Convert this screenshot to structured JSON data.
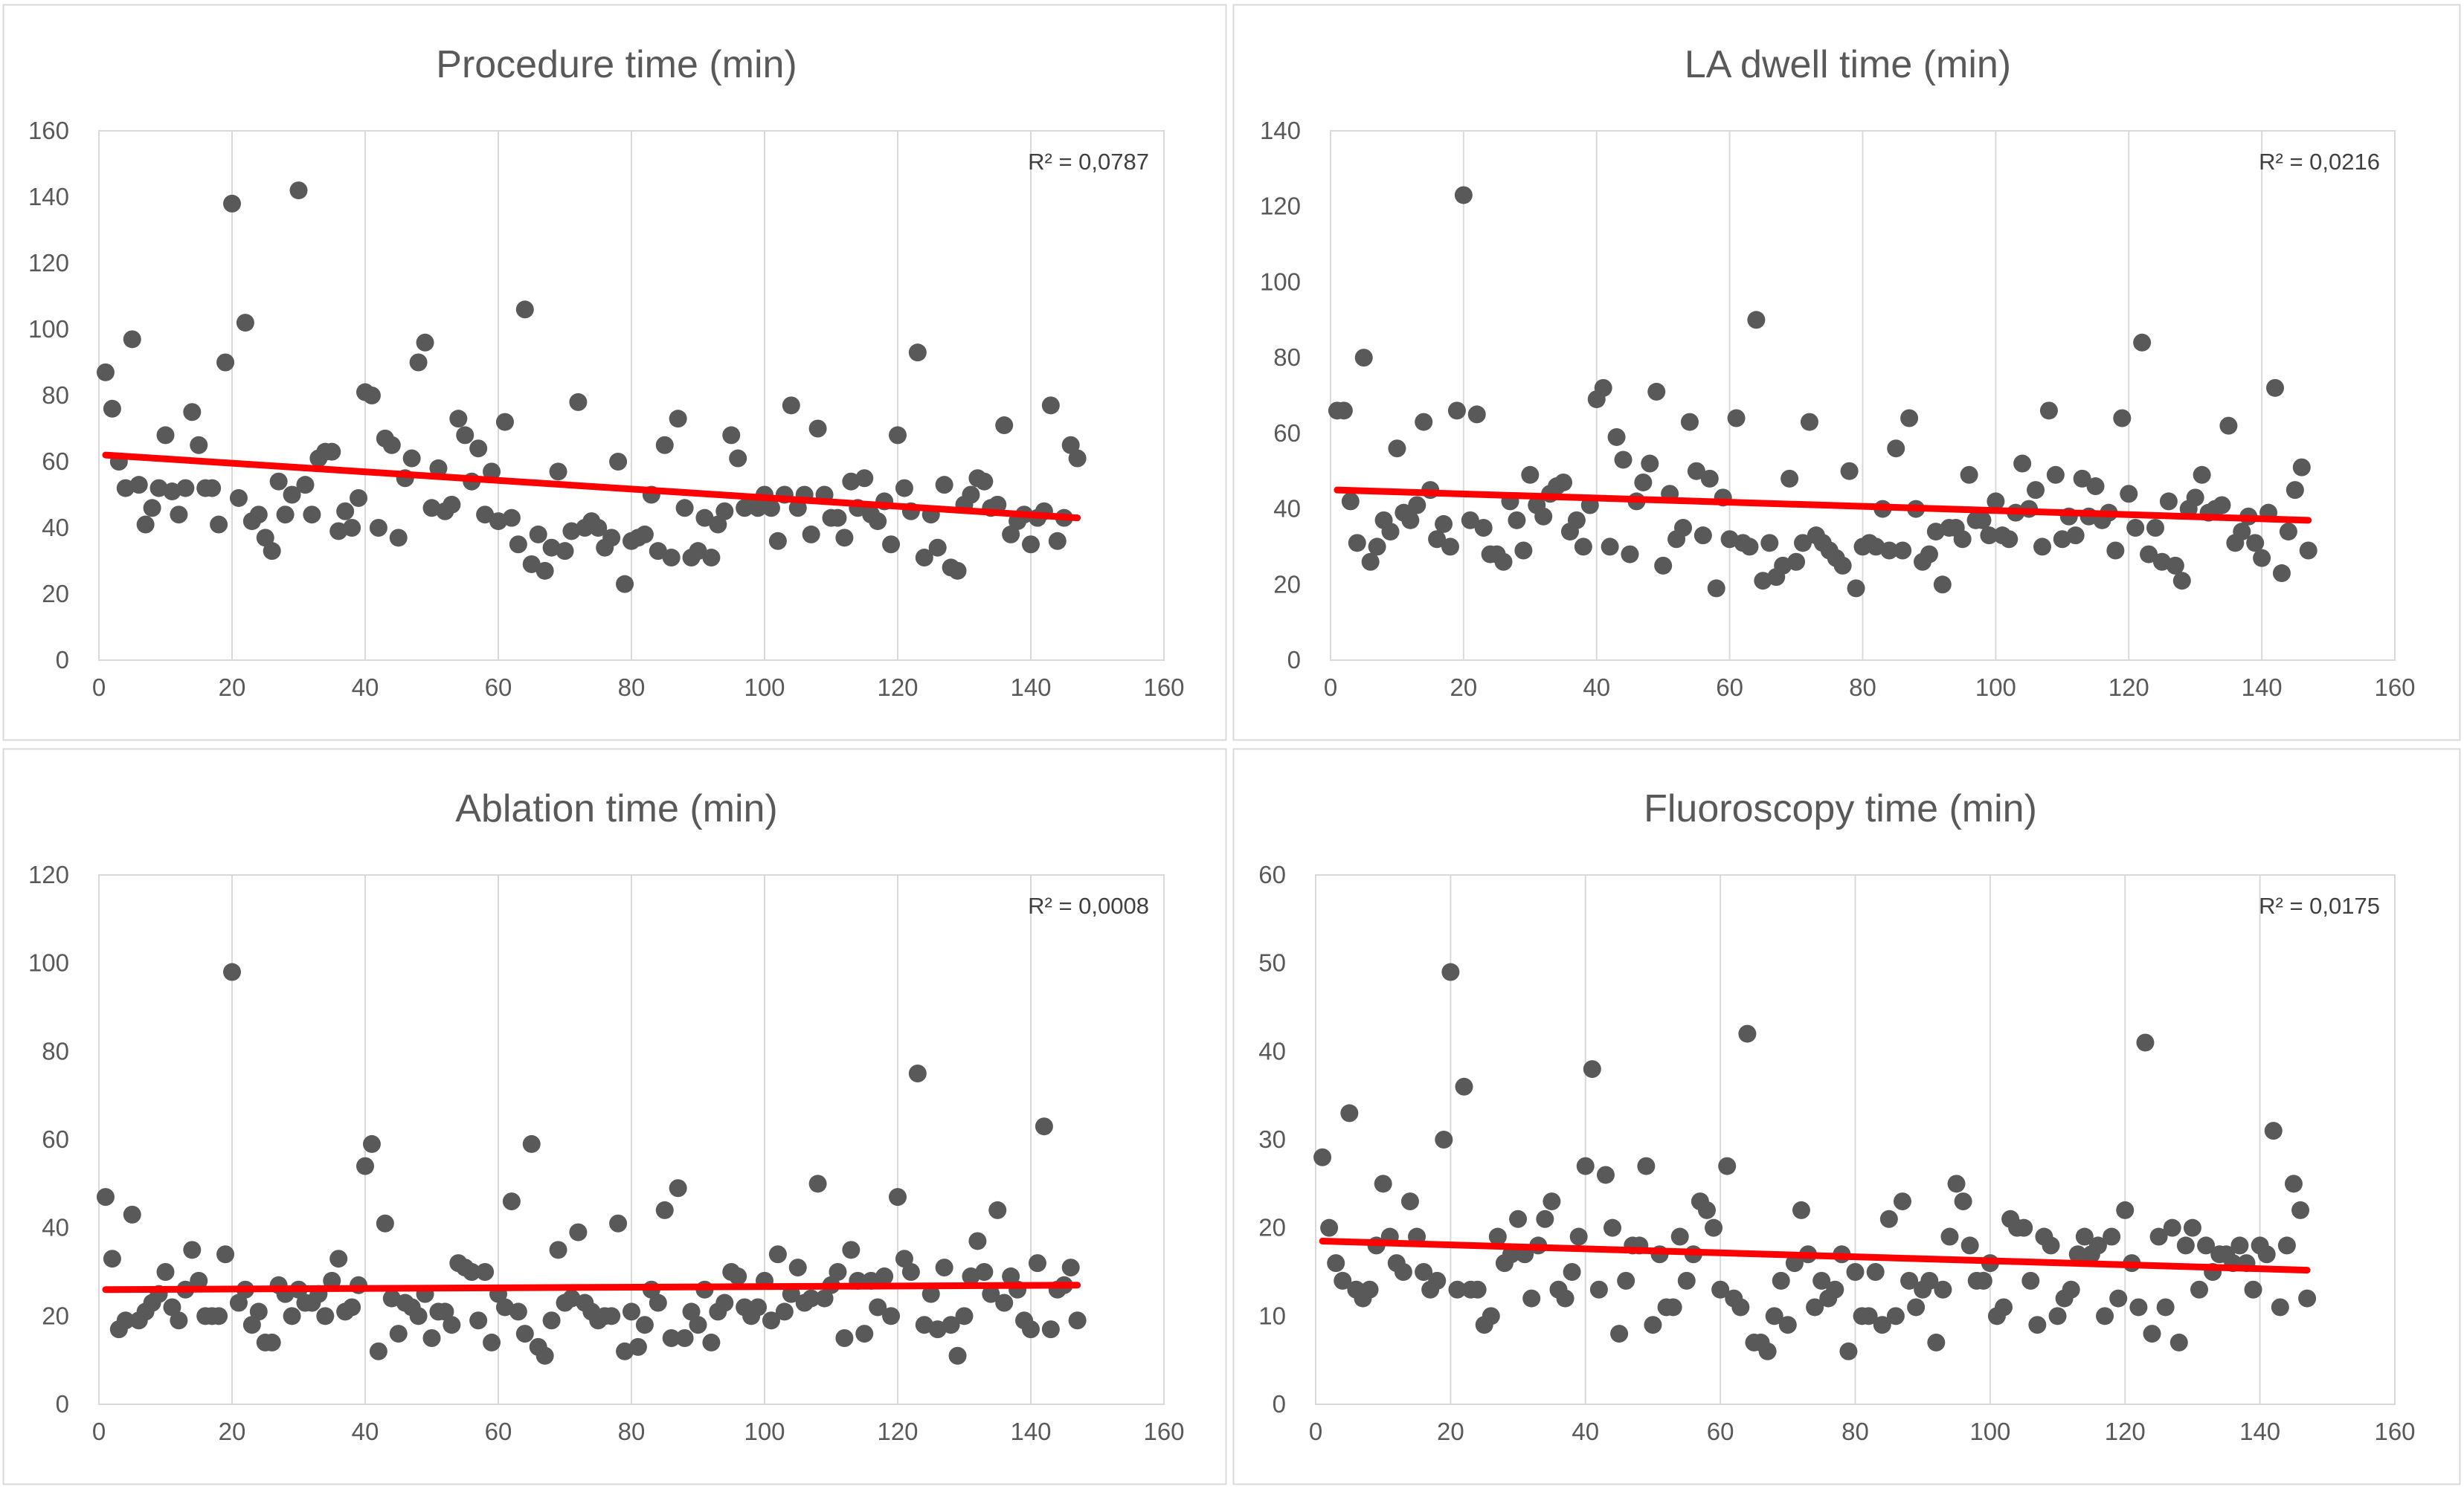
{
  "chart_data": [
    {
      "type": "scatter",
      "title": "Procedure time (min)",
      "xlabel": "",
      "ylabel": "",
      "xlim": [
        0,
        160
      ],
      "ylim": [
        0,
        160
      ],
      "xticks": [
        "0",
        "20",
        "40",
        "60",
        "80",
        "100",
        "120",
        "140",
        "160"
      ],
      "yticks": [
        "0",
        "20",
        "40",
        "60",
        "80",
        "100",
        "120",
        "140",
        "160"
      ],
      "grid": "vertical",
      "legend": "none",
      "point_color": "#595959",
      "trendline_color": "#ff0000",
      "annotation": "R² = 0,0787",
      "trendline": {
        "x": [
          1,
          147
        ],
        "y": [
          62,
          43
        ]
      },
      "x": [
        1,
        2,
        3,
        4,
        5,
        6,
        7,
        8,
        9,
        10,
        11,
        12,
        13,
        14,
        15,
        16,
        17,
        18,
        19,
        20,
        21,
        22,
        23,
        24,
        25,
        26,
        27,
        28,
        29,
        30,
        31,
        32,
        33,
        34,
        35,
        36,
        37,
        38,
        39,
        40,
        41,
        42,
        43,
        44,
        45,
        46,
        47,
        48,
        49,
        50,
        51,
        52,
        53,
        54,
        55,
        56,
        57,
        58,
        59,
        60,
        61,
        62,
        63,
        64,
        65,
        66,
        67,
        68,
        69,
        70,
        71,
        72,
        73,
        74,
        75,
        76,
        77,
        78,
        79,
        80,
        81,
        82,
        83,
        84,
        85,
        86,
        87,
        88,
        89,
        90,
        91,
        92,
        93,
        94,
        95,
        96,
        97,
        98,
        99,
        100,
        101,
        102,
        103,
        104,
        105,
        106,
        107,
        108,
        109,
        110,
        111,
        112,
        113,
        114,
        115,
        116,
        117,
        118,
        119,
        120,
        121,
        122,
        123,
        124,
        125,
        126,
        127,
        128,
        129,
        130,
        131,
        132,
        133,
        134,
        135,
        136,
        137,
        138,
        139,
        140,
        141,
        142,
        143,
        144,
        145,
        146,
        147
      ],
      "y": [
        87,
        76,
        60,
        52,
        97,
        53,
        41,
        46,
        52,
        68,
        51,
        44,
        52,
        75,
        65,
        52,
        52,
        41,
        90,
        138,
        49,
        102,
        42,
        44,
        37,
        33,
        54,
        44,
        50,
        142,
        53,
        44,
        61,
        63,
        63,
        39,
        45,
        40,
        49,
        81,
        80,
        40,
        67,
        65,
        37,
        55,
        61,
        90,
        96,
        46,
        58,
        45,
        47,
        73,
        68,
        54,
        64,
        44,
        57,
        42,
        72,
        43,
        35,
        106,
        29,
        38,
        27,
        34,
        57,
        33,
        39,
        78,
        40,
        42,
        40,
        34,
        37,
        60,
        23,
        36,
        37,
        38,
        50,
        33,
        65,
        31,
        73,
        46,
        31,
        33,
        43,
        31,
        41,
        45,
        68,
        61,
        46,
        47,
        46,
        50,
        46,
        36,
        50,
        77,
        46,
        50,
        38,
        70,
        50,
        43,
        43,
        37,
        54,
        46,
        55,
        44,
        42,
        48,
        35,
        68,
        52,
        45,
        93,
        31,
        44,
        34,
        53,
        28,
        27,
        47,
        50,
        55,
        54,
        46,
        47,
        71,
        38,
        42,
        44,
        35,
        43,
        45,
        77,
        36,
        43,
        65,
        61
      ]
    },
    {
      "type": "scatter",
      "title": "LA dwell time (min)",
      "xlabel": "",
      "ylabel": "",
      "xlim": [
        0,
        160
      ],
      "ylim": [
        0,
        140
      ],
      "xticks": [
        "0",
        "20",
        "40",
        "60",
        "80",
        "100",
        "120",
        "140",
        "160"
      ],
      "yticks": [
        "0",
        "20",
        "40",
        "60",
        "80",
        "100",
        "120",
        "140"
      ],
      "grid": "vertical",
      "legend": "none",
      "point_color": "#595959",
      "trendline_color": "#ff0000",
      "annotation": "R² = 0,0216",
      "trendline": {
        "x": [
          1,
          147
        ],
        "y": [
          45,
          37
        ]
      },
      "x": [
        1,
        2,
        3,
        4,
        5,
        6,
        7,
        8,
        9,
        10,
        11,
        12,
        13,
        14,
        15,
        16,
        17,
        18,
        19,
        20,
        21,
        22,
        23,
        24,
        25,
        26,
        27,
        28,
        29,
        30,
        31,
        32,
        33,
        34,
        35,
        36,
        37,
        38,
        39,
        40,
        41,
        42,
        43,
        44,
        45,
        46,
        47,
        48,
        49,
        50,
        51,
        52,
        53,
        54,
        55,
        56,
        57,
        58,
        59,
        60,
        61,
        62,
        63,
        64,
        65,
        66,
        67,
        68,
        69,
        70,
        71,
        72,
        73,
        74,
        75,
        76,
        77,
        78,
        79,
        80,
        81,
        82,
        83,
        84,
        85,
        86,
        87,
        88,
        89,
        90,
        91,
        92,
        93,
        94,
        95,
        96,
        97,
        98,
        99,
        100,
        101,
        102,
        103,
        104,
        105,
        106,
        107,
        108,
        109,
        110,
        111,
        112,
        113,
        114,
        115,
        116,
        117,
        118,
        119,
        120,
        121,
        122,
        123,
        124,
        125,
        126,
        127,
        128,
        129,
        130,
        131,
        132,
        133,
        134,
        135,
        136,
        137,
        138,
        139,
        140,
        141,
        142,
        143,
        144,
        145,
        146,
        147
      ],
      "y": [
        66,
        66,
        42,
        31,
        80,
        26,
        30,
        37,
        34,
        56,
        39,
        37,
        41,
        63,
        45,
        32,
        36,
        30,
        66,
        123,
        37,
        65,
        35,
        28,
        28,
        26,
        42,
        37,
        29,
        49,
        41,
        38,
        44,
        46,
        47,
        34,
        37,
        30,
        41,
        69,
        72,
        30,
        59,
        53,
        28,
        42,
        47,
        52,
        71,
        25,
        44,
        32,
        35,
        63,
        50,
        33,
        48,
        19,
        43,
        32,
        64,
        31,
        30,
        90,
        21,
        31,
        22,
        25,
        48,
        26,
        31,
        63,
        33,
        31,
        29,
        27,
        25,
        50,
        19,
        30,
        31,
        30,
        40,
        29,
        56,
        29,
        64,
        40,
        26,
        28,
        34,
        20,
        35,
        35,
        32,
        49,
        37,
        37,
        33,
        42,
        33,
        32,
        39,
        52,
        40,
        45,
        30,
        66,
        49,
        32,
        38,
        33,
        48,
        38,
        46,
        37,
        39,
        29,
        64,
        44,
        35,
        84,
        28,
        35,
        26,
        42,
        25,
        21,
        40,
        43,
        49,
        39,
        40,
        41,
        62,
        31,
        34,
        38,
        31,
        27,
        39,
        72,
        23,
        34,
        45,
        51,
        29
      ]
    },
    {
      "type": "scatter",
      "title": "Ablation time (min)",
      "xlabel": "",
      "ylabel": "",
      "xlim": [
        0,
        160
      ],
      "ylim": [
        0,
        120
      ],
      "xticks": [
        "0",
        "20",
        "40",
        "60",
        "80",
        "100",
        "120",
        "140",
        "160"
      ],
      "yticks": [
        "0",
        "20",
        "40",
        "60",
        "80",
        "100",
        "120"
      ],
      "grid": "vertical",
      "legend": "none",
      "point_color": "#595959",
      "trendline_color": "#ff0000",
      "annotation": "R² = 0,0008",
      "trendline": {
        "x": [
          1,
          147
        ],
        "y": [
          26,
          27
        ]
      },
      "x": [
        1,
        2,
        3,
        4,
        5,
        6,
        7,
        8,
        9,
        10,
        11,
        12,
        13,
        14,
        15,
        16,
        17,
        18,
        19,
        20,
        21,
        22,
        23,
        24,
        25,
        26,
        27,
        28,
        29,
        30,
        31,
        32,
        33,
        34,
        35,
        36,
        37,
        38,
        39,
        40,
        41,
        42,
        43,
        44,
        45,
        46,
        47,
        48,
        49,
        50,
        51,
        52,
        53,
        54,
        55,
        56,
        57,
        58,
        59,
        60,
        61,
        62,
        63,
        64,
        65,
        66,
        67,
        68,
        69,
        70,
        71,
        72,
        73,
        74,
        75,
        76,
        77,
        78,
        79,
        80,
        81,
        82,
        83,
        84,
        85,
        86,
        87,
        88,
        89,
        90,
        91,
        92,
        93,
        94,
        95,
        96,
        97,
        98,
        99,
        100,
        101,
        102,
        103,
        104,
        105,
        106,
        107,
        108,
        109,
        110,
        111,
        112,
        113,
        114,
        115,
        116,
        117,
        118,
        119,
        120,
        121,
        122,
        123,
        124,
        125,
        126,
        127,
        128,
        129,
        130,
        131,
        132,
        133,
        134,
        135,
        136,
        137,
        138,
        139,
        140,
        141,
        142,
        143,
        144,
        145,
        146,
        147
      ],
      "y": [
        47,
        33,
        17,
        19,
        43,
        19,
        21,
        23,
        25,
        30,
        22,
        19,
        26,
        35,
        28,
        20,
        20,
        20,
        34,
        98,
        23,
        26,
        18,
        21,
        14,
        14,
        27,
        25,
        20,
        26,
        23,
        23,
        25,
        20,
        28,
        33,
        21,
        22,
        27,
        54,
        59,
        12,
        41,
        24,
        16,
        23,
        22,
        20,
        25,
        15,
        21,
        21,
        18,
        32,
        31,
        30,
        19,
        30,
        14,
        25,
        22,
        46,
        21,
        16,
        59,
        13,
        11,
        19,
        35,
        23,
        24,
        39,
        23,
        21,
        19,
        20,
        20,
        41,
        12,
        21,
        13,
        18,
        26,
        23,
        44,
        15,
        49,
        15,
        21,
        18,
        26,
        14,
        21,
        23,
        30,
        29,
        22,
        20,
        22,
        28,
        19,
        34,
        21,
        25,
        31,
        23,
        24,
        50,
        24,
        27,
        30,
        15,
        35,
        28,
        16,
        28,
        22,
        29,
        20,
        47,
        33,
        30,
        75,
        18,
        25,
        17,
        31,
        18,
        11,
        20,
        29,
        37,
        30,
        25,
        44,
        23,
        29,
        26,
        19,
        17,
        32,
        63,
        17,
        26,
        27,
        31,
        19
      ]
    },
    {
      "type": "scatter",
      "title": "Fluoroscopy time (min)",
      "xlabel": "",
      "ylabel": "",
      "xlim": [
        0,
        160
      ],
      "ylim": [
        0,
        60
      ],
      "xticks": [
        "0",
        "20",
        "40",
        "60",
        "80",
        "100",
        "120",
        "140",
        "160"
      ],
      "yticks": [
        "0",
        "10",
        "20",
        "30",
        "40",
        "50",
        "60"
      ],
      "grid": "vertical",
      "legend": "none",
      "point_color": "#595959",
      "trendline_color": "#ff0000",
      "annotation": "R² = 0,0175",
      "trendline": {
        "x": [
          1,
          147
        ],
        "y": [
          18.5,
          15.2
        ]
      },
      "x": [
        1,
        2,
        3,
        4,
        5,
        6,
        7,
        8,
        9,
        10,
        11,
        12,
        13,
        14,
        15,
        16,
        17,
        18,
        19,
        20,
        21,
        22,
        23,
        24,
        25,
        26,
        27,
        28,
        29,
        30,
        31,
        32,
        33,
        34,
        35,
        36,
        37,
        38,
        39,
        40,
        41,
        42,
        43,
        44,
        45,
        46,
        47,
        48,
        49,
        50,
        51,
        52,
        53,
        54,
        55,
        56,
        57,
        58,
        59,
        60,
        61,
        62,
        63,
        64,
        65,
        66,
        67,
        68,
        69,
        70,
        71,
        72,
        73,
        74,
        75,
        76,
        77,
        78,
        79,
        80,
        81,
        82,
        83,
        84,
        85,
        86,
        87,
        88,
        89,
        90,
        91,
        92,
        93,
        94,
        95,
        96,
        97,
        98,
        99,
        100,
        101,
        102,
        103,
        104,
        105,
        106,
        107,
        108,
        109,
        110,
        111,
        112,
        113,
        114,
        115,
        116,
        117,
        118,
        119,
        120,
        121,
        122,
        123,
        124,
        125,
        126,
        127,
        128,
        129,
        130,
        131,
        132,
        133,
        134,
        135,
        136,
        137,
        138,
        139,
        140,
        141,
        142,
        143,
        144,
        145,
        146,
        147
      ],
      "y": [
        28,
        20,
        16,
        14,
        33,
        13,
        12,
        13,
        18,
        25,
        19,
        16,
        15,
        23,
        19,
        15,
        13,
        14,
        30,
        49,
        13,
        36,
        13,
        13,
        9,
        10,
        19,
        16,
        17,
        21,
        17,
        12,
        18,
        21,
        23,
        13,
        12,
        15,
        19,
        27,
        38,
        13,
        26,
        20,
        8,
        14,
        18,
        18,
        27,
        9,
        17,
        11,
        11,
        19,
        14,
        17,
        23,
        22,
        20,
        13,
        27,
        12,
        11,
        42,
        7,
        7,
        6,
        10,
        14,
        9,
        16,
        22,
        17,
        11,
        14,
        12,
        13,
        17,
        6,
        15,
        10,
        10,
        15,
        9,
        21,
        10,
        23,
        14,
        11,
        13,
        14,
        7,
        13,
        19,
        25,
        23,
        18,
        14,
        14,
        16,
        10,
        11,
        21,
        20,
        20,
        14,
        9,
        19,
        18,
        10,
        12,
        13,
        17,
        19,
        17,
        18,
        10,
        19,
        12,
        22,
        16,
        11,
        41,
        8,
        19,
        11,
        20,
        7,
        18,
        20,
        13,
        18,
        15,
        17,
        17,
        16,
        18,
        16,
        13,
        18,
        17,
        31,
        11,
        18,
        25,
        22,
        12
      ]
    }
  ]
}
